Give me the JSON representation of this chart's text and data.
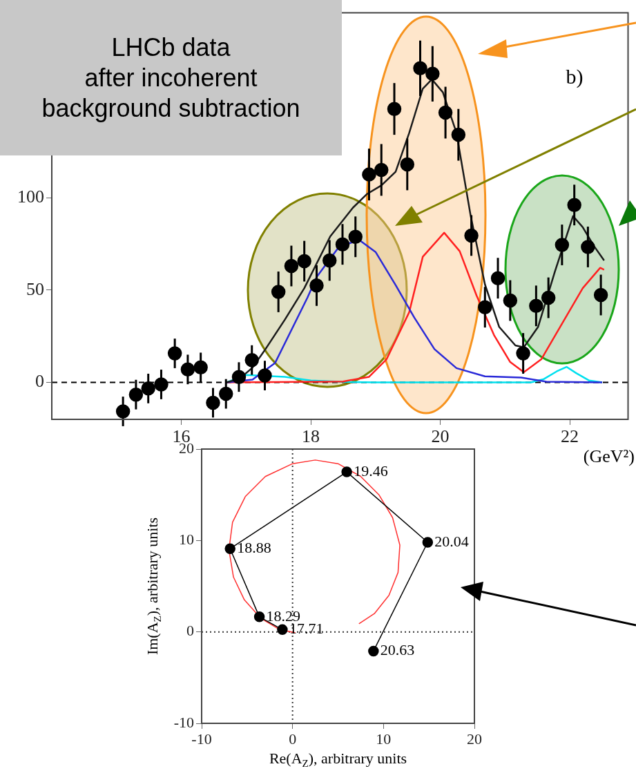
{
  "chart_data": [
    {
      "type": "scatter",
      "xlabel": "(GeV²)",
      "xlim": [
        14,
        22.9
      ],
      "xticks": [
        16,
        18,
        20,
        22
      ],
      "ylim": [
        -20,
        200
      ],
      "yticks": [
        0,
        50,
        100
      ],
      "grid": false,
      "annotations": [
        "LHCb data\nafter incoherent\nbackground subtraction",
        "b)"
      ],
      "ref_lines": [
        {
          "axis": "y",
          "value": 0,
          "line_style": "dashed",
          "color": "#000000"
        }
      ],
      "series": [
        {
          "marker": "circle",
          "color": "#000000",
          "x": [
            15.1,
            15.3,
            15.49,
            15.69,
            15.9,
            16.1,
            16.3,
            16.49,
            16.69,
            16.89,
            17.09,
            17.29,
            17.5,
            17.7,
            17.9,
            18.09,
            18.29,
            18.49,
            18.69,
            18.9,
            19.09,
            19.29,
            19.49,
            19.69,
            19.88,
            20.08,
            20.28,
            20.48,
            20.69,
            20.89,
            21.08,
            21.28,
            21.48,
            21.67,
            21.88,
            22.07,
            22.28,
            22.48
          ],
          "values": [
            -15.7,
            -6.6,
            -3.3,
            -1.1,
            15.7,
            7,
            8.1,
            -11,
            -6.2,
            2.9,
            12.1,
            3.7,
            49,
            63,
            65.6,
            52.4,
            66,
            74.7,
            78.8,
            112.5,
            115,
            148,
            118,
            170,
            167,
            146,
            134,
            79.5,
            40.7,
            56.4,
            44.3,
            15.7,
            41.4,
            45.8,
            74.4,
            96,
            73.3,
            47.3
          ],
          "errors": [
            8,
            8,
            8,
            8,
            8,
            8,
            8,
            8,
            8,
            8,
            8,
            8,
            11,
            11,
            11,
            11,
            11,
            11,
            11,
            14,
            14,
            14,
            14,
            15,
            15,
            14,
            14,
            11,
            11,
            11,
            11,
            11,
            11,
            11,
            11,
            11,
            11,
            11
          ]
        },
        {
          "type": "line",
          "marker": "none",
          "color": "#1a1a1a",
          "x": [
            16.7,
            16.9,
            17.1,
            17.3,
            17.6,
            17.9,
            18.3,
            18.65,
            18.87,
            19.09,
            19.31,
            19.52,
            19.73,
            19.87,
            20.04,
            20.25,
            20.47,
            20.69,
            20.91,
            21.16,
            21.29,
            21.51,
            21.77,
            22.05,
            22.2,
            22.37,
            22.53
          ],
          "values": [
            0,
            2,
            8,
            18,
            34,
            51,
            79,
            94.5,
            102,
            106.6,
            114,
            135,
            159,
            164,
            157,
            135,
            90,
            53,
            30,
            20,
            19,
            30,
            60,
            90,
            84,
            74,
            66
          ]
        },
        {
          "type": "line",
          "marker": "none",
          "color": "#2a2ad8",
          "x": [
            16.7,
            17.1,
            17.45,
            17.95,
            18.09,
            18.44,
            18.75,
            19,
            19.31,
            19.6,
            19.91,
            20.25,
            20.69,
            21.25,
            21.64,
            22.5
          ],
          "values": [
            0,
            1.5,
            10.6,
            46,
            57,
            73.6,
            77,
            70.6,
            52.7,
            35,
            18,
            7.7,
            3.3,
            2.6,
            0.4,
            0
          ]
        },
        {
          "type": "line",
          "marker": "none",
          "color": "#ff2020",
          "x": [
            16.7,
            18.5,
            18.9,
            19.17,
            19.52,
            19.73,
            20.06,
            20.3,
            20.56,
            20.83,
            21.08,
            21.29,
            21.56,
            21.85,
            22.2,
            22.47,
            22.53
          ],
          "values": [
            0,
            0.5,
            3,
            12.5,
            38,
            68,
            81,
            71,
            47,
            25.6,
            11,
            5.5,
            12.5,
            30,
            51,
            62,
            61
          ]
        },
        {
          "type": "line",
          "marker": "none",
          "color": "#00e0ee",
          "x": [
            16.7,
            17,
            17.6,
            18,
            18.5,
            19,
            21.4,
            21.6,
            21.8,
            21.95,
            22.1,
            22.3,
            22.5
          ],
          "values": [
            0,
            4,
            3,
            1,
            0.3,
            0,
            0,
            1.8,
            6,
            8.4,
            5,
            1,
            0
          ]
        }
      ]
    },
    {
      "type": "line",
      "xlabel": "Re(A$_{Z}$), arbitrary units",
      "ylabel": "Im(A$_{Z}$), arbitrary units",
      "xlim": [
        -10,
        20
      ],
      "xticks": [
        -10,
        0,
        10,
        20
      ],
      "ylim": [
        -10,
        20
      ],
      "yticks": [
        -10,
        0,
        10,
        20
      ],
      "grid": false,
      "ref_lines": [
        {
          "axis": "x",
          "value": 0,
          "line_style": "dotted",
          "color": "#333333"
        },
        {
          "axis": "y",
          "value": 0,
          "line_style": "dotted",
          "color": "#333333"
        }
      ],
      "annotations": [
        {
          "text": "17.71",
          "x": -1.12,
          "y": 0.25
        },
        {
          "text": "18.29",
          "x": -3.65,
          "y": 1.65
        },
        {
          "text": "18.88",
          "x": -6.87,
          "y": 9.1
        },
        {
          "text": "19.46",
          "x": 5.96,
          "y": 17.5
        },
        {
          "text": "20.04",
          "x": 14.86,
          "y": 9.8
        },
        {
          "text": "20.63",
          "x": 8.9,
          "y": -2.1
        }
      ],
      "series": [
        {
          "marker": "circle",
          "color": "#000000",
          "x": [
            -1.12,
            -3.65,
            -6.87,
            5.96,
            14.86,
            8.9
          ],
          "values": [
            0.25,
            1.65,
            9.1,
            17.5,
            9.8,
            -2.1
          ]
        },
        {
          "marker": "none",
          "color": "#ff3030",
          "x": [
            0.3,
            -1.5,
            -3.5,
            -5.3,
            -6.5,
            -7,
            -6.6,
            -5.2,
            -3,
            0,
            2.5,
            5,
            7.5,
            9.5,
            11,
            11.8,
            11.6,
            10.6,
            9,
            7.3
          ],
          "values": [
            -0.1,
            0.3,
            1.5,
            3.5,
            6,
            9,
            12,
            14.8,
            17,
            18.4,
            18.8,
            18.4,
            17,
            15,
            12.5,
            9.5,
            6.5,
            4,
            2,
            0.9
          ]
        }
      ]
    }
  ]
}
